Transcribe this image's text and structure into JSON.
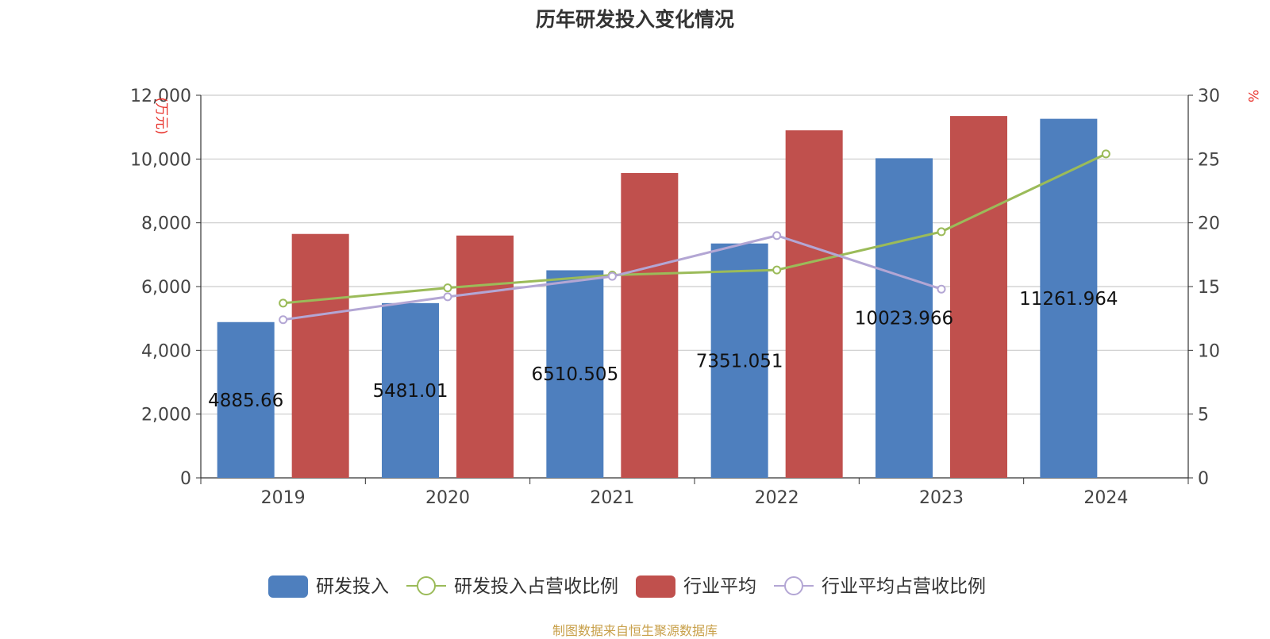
{
  "chart_data": {
    "type": "bar",
    "title": "历年研发投入变化情况",
    "categories": [
      "2019",
      "2020",
      "2021",
      "2022",
      "2023",
      "2024"
    ],
    "y_left": {
      "unit_label": "(万元)",
      "ylim": [
        0,
        12000
      ],
      "ticks": [
        "0",
        "2,000",
        "4,000",
        "6,000",
        "8,000",
        "10,000",
        "12,000"
      ]
    },
    "y_right": {
      "unit_label": "%",
      "ylim": [
        0,
        30
      ],
      "ticks": [
        "0",
        "5",
        "10",
        "15",
        "20",
        "25",
        "30"
      ]
    },
    "grid": true,
    "legend_position": "bottom",
    "series": [
      {
        "name": "研发投入",
        "type": "bar",
        "axis": "left",
        "color": "#4e7fbe",
        "values": [
          4885.66,
          5481.01,
          6510.505,
          7351.051,
          10023.966,
          11261.964
        ],
        "labels": [
          "4885.66",
          "5481.01",
          "6510.505",
          "7351.051",
          "10023.966",
          "11261.964"
        ]
      },
      {
        "name": "研发投入占营收比例",
        "type": "line",
        "axis": "right",
        "color": "#9bbb59",
        "values": [
          13.7,
          14.9,
          15.9,
          16.3,
          19.3,
          25.4
        ]
      },
      {
        "name": "行业平均",
        "type": "bar",
        "axis": "left",
        "color": "#c0504d",
        "values": [
          7650,
          7600,
          9560,
          10900,
          11350,
          null
        ]
      },
      {
        "name": "行业平均占营收比例",
        "type": "line",
        "axis": "right",
        "color": "#b3a6d4",
        "values": [
          12.4,
          14.2,
          15.8,
          19.0,
          14.8,
          null
        ]
      }
    ]
  },
  "footer": {
    "text": "制图数据来自恒生聚源数据库"
  }
}
